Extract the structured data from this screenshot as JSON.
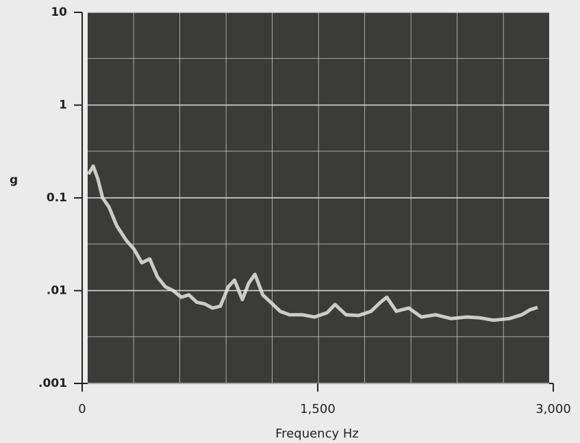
{
  "chart_data": {
    "type": "line",
    "x_label": "Frequency  Hz",
    "y_label": "g",
    "log_y": true,
    "grid": true,
    "xlim": [
      0,
      3000
    ],
    "ylim": [
      0.001,
      10
    ],
    "xticks": [
      0,
      {
        "value": 1500,
        "label": "1,500"
      },
      {
        "value": 3000,
        "label": "3,000"
      }
    ],
    "yticks": [
      {
        "value": 0.001,
        "label": ".001"
      },
      {
        "value": 0.01,
        "label": ".01"
      },
      {
        "value": 0.1,
        "label": "0.1"
      },
      1,
      10
    ],
    "x": [
      40,
      70,
      100,
      130,
      170,
      220,
      280,
      330,
      380,
      430,
      480,
      530,
      580,
      630,
      680,
      730,
      780,
      830,
      880,
      930,
      970,
      1020,
      1060,
      1100,
      1150,
      1200,
      1260,
      1320,
      1400,
      1480,
      1560,
      1610,
      1680,
      1760,
      1840,
      1900,
      1940,
      2000,
      2080,
      2160,
      2250,
      2350,
      2450,
      2530,
      2620,
      2720,
      2800,
      2850,
      2900
    ],
    "series": [
      {
        "name": "g",
        "color": "#e6e6e0",
        "values": [
          0.18,
          0.22,
          0.16,
          0.1,
          0.08,
          0.05,
          0.035,
          0.028,
          0.02,
          0.022,
          0.014,
          0.011,
          0.01,
          0.0085,
          0.009,
          0.0075,
          0.0072,
          0.0065,
          0.0068,
          0.011,
          0.013,
          0.008,
          0.012,
          0.015,
          0.009,
          0.0075,
          0.006,
          0.0055,
          0.0055,
          0.0052,
          0.0058,
          0.0071,
          0.0055,
          0.0054,
          0.006,
          0.0075,
          0.0085,
          0.006,
          0.0065,
          0.0052,
          0.0055,
          0.005,
          0.0052,
          0.0051,
          0.0048,
          0.005,
          0.0055,
          0.0062,
          0.0066
        ]
      }
    ]
  }
}
